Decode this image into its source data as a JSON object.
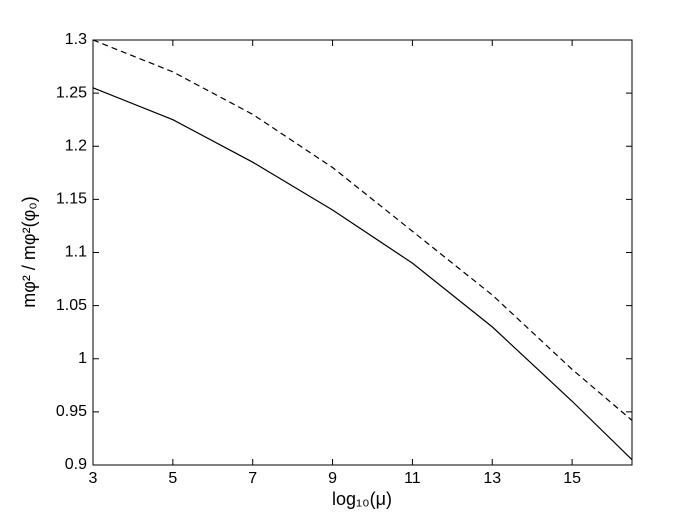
{
  "chart_data": {
    "type": "line",
    "xlabel": "log₁₀(μ)",
    "ylabel": "mφ² / mφ²(φ₀)",
    "x": [
      3,
      5,
      7,
      9,
      11,
      13,
      15,
      16.5
    ],
    "series": [
      {
        "color": "#000000",
        "linestyle": "solid",
        "values": [
          1.255,
          1.225,
          1.185,
          1.14,
          1.09,
          1.03,
          0.96,
          0.905
        ]
      },
      {
        "color": "#000000",
        "linestyle": "dashed",
        "values": [
          1.3,
          1.27,
          1.23,
          1.18,
          1.12,
          1.06,
          0.99,
          0.942
        ]
      }
    ],
    "xlim": [
      3,
      16.5
    ],
    "ylim": [
      0.9,
      1.3
    ],
    "xticks": [
      3,
      5,
      7,
      9,
      11,
      13,
      15
    ],
    "yticks": [
      0.9,
      0.95,
      1,
      1.05,
      1.1,
      1.15,
      1.2,
      1.25,
      1.3
    ],
    "grid": false
  }
}
